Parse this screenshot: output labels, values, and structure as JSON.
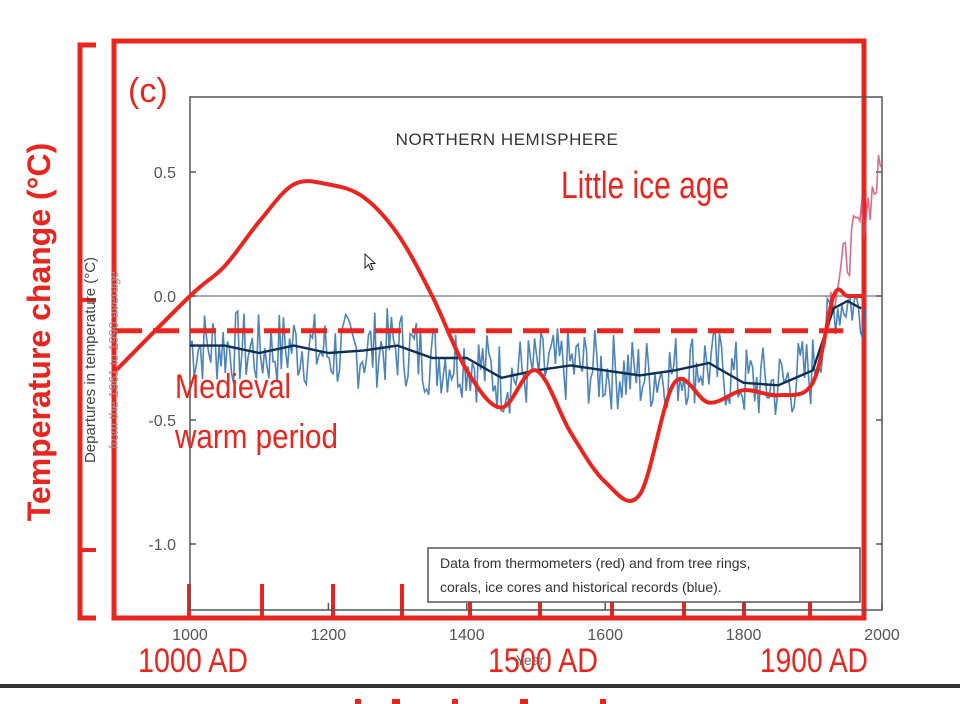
{
  "panel_label": "(c)",
  "outer_axis_label": "Temperature change (°C)",
  "era_labels": [
    "1000 AD",
    "1500 AD",
    "1900 AD"
  ],
  "colors": {
    "annotation_red": "#e8251e",
    "proxy_blue": "#2f6fad",
    "smooth_dark": "#0c2f52",
    "axis_gray": "#555555"
  },
  "chart_data": {
    "type": "line",
    "title": "NORTHERN HEMISPHERE",
    "ylabel": "Departures in temperature (°C)",
    "ylabel_sub": "from the 1961 to 1990 average",
    "xlabel": "Year",
    "xlim": [
      1000,
      2000
    ],
    "ylim": [
      -1.25,
      0.75
    ],
    "xticks": [
      1000,
      1200,
      1400,
      1600,
      1800,
      2000
    ],
    "yticks": [
      "0.5",
      "0.0",
      "-0.5",
      "-1.0"
    ],
    "ytick_values": [
      0.5,
      0.0,
      -0.5,
      -1.0
    ],
    "legend_note": "Data from thermometers (red) and from tree rings, corals, ice cores and historical records (blue).",
    "annotations": [
      "Little ice age",
      "Medieval warm period"
    ],
    "series": [
      {
        "kind": "proxy_smoothed",
        "x": [
          1000,
          1050,
          1100,
          1150,
          1200,
          1250,
          1300,
          1350,
          1400,
          1450,
          1500,
          1550,
          1600,
          1650,
          1700,
          1750,
          1800,
          1850,
          1900,
          1930,
          1950,
          1970
        ],
        "y": [
          -0.2,
          -0.2,
          -0.23,
          -0.2,
          -0.23,
          -0.22,
          -0.2,
          -0.25,
          -0.25,
          -0.33,
          -0.3,
          -0.28,
          -0.3,
          -0.32,
          -0.3,
          -0.27,
          -0.35,
          -0.36,
          -0.3,
          -0.05,
          -0.02,
          -0.05
        ]
      },
      {
        "kind": "lamb_schematic",
        "x": [
          1000,
          1050,
          1100,
          1150,
          1200,
          1250,
          1300,
          1350,
          1400,
          1450,
          1500,
          1550,
          1600,
          1650,
          1700,
          1750,
          1800,
          1850,
          1900,
          1930,
          1950,
          1970
        ],
        "y": [
          0.0,
          0.12,
          0.3,
          0.45,
          0.45,
          0.4,
          0.25,
          0.0,
          -0.3,
          -0.45,
          -0.3,
          -0.55,
          -0.75,
          -0.8,
          -0.35,
          -0.43,
          -0.38,
          -0.4,
          -0.35,
          0.0,
          0.0,
          0.0
        ]
      },
      {
        "kind": "reference_dashed",
        "x": [
          1000,
          1970
        ],
        "y": [
          -0.14,
          -0.14
        ]
      }
    ]
  }
}
